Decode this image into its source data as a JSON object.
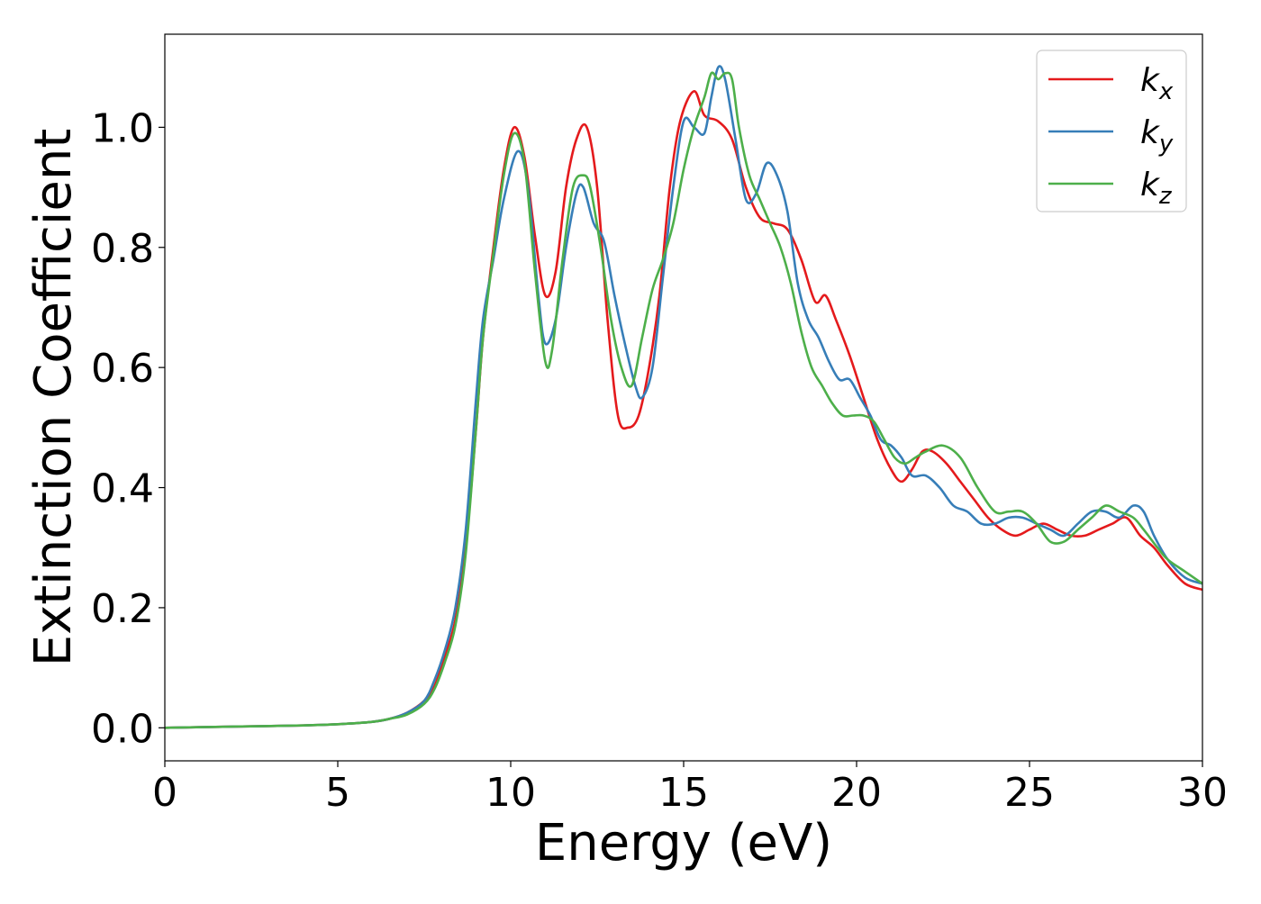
{
  "chart_data": {
    "type": "line",
    "xlabel": "Energy (eV)",
    "ylabel": "Extinction Coefficient",
    "xlim": [
      0,
      30
    ],
    "ylim": [
      -0.055,
      1.155
    ],
    "xticks": [
      "0",
      "5",
      "10",
      "15",
      "20",
      "25",
      "30"
    ],
    "yticks": [
      "0.0",
      "0.2",
      "0.4",
      "0.6",
      "0.8",
      "1.0"
    ],
    "grid": false,
    "legend_position": "top-right",
    "series": [
      {
        "name": "k_x",
        "legend_base": "k",
        "legend_sub": "x",
        "color": "#e41a1c",
        "x": [
          0,
          2,
          4,
          5,
          6,
          6.5,
          7,
          7.5,
          7.8,
          8.1,
          8.4,
          8.7,
          9.0,
          9.2,
          9.5,
          9.8,
          10.1,
          10.4,
          10.7,
          11.0,
          11.3,
          11.6,
          11.9,
          12.2,
          12.5,
          12.8,
          13.1,
          13.4,
          13.7,
          14.0,
          14.3,
          14.6,
          14.9,
          15.3,
          15.6,
          16.0,
          16.4,
          16.8,
          17.2,
          17.6,
          18.0,
          18.4,
          18.8,
          19.1,
          19.4,
          19.8,
          20.2,
          20.6,
          21.0,
          21.3,
          21.6,
          21.9,
          22.2,
          22.6,
          23.0,
          23.4,
          23.8,
          24.2,
          24.6,
          25.0,
          25.4,
          25.8,
          26.2,
          26.6,
          27.0,
          27.4,
          27.8,
          28.2,
          28.6,
          29.0,
          29.5,
          30.0
        ],
        "y": [
          0.0,
          0.002,
          0.004,
          0.006,
          0.01,
          0.015,
          0.025,
          0.045,
          0.07,
          0.12,
          0.18,
          0.3,
          0.5,
          0.65,
          0.8,
          0.93,
          1.0,
          0.95,
          0.82,
          0.72,
          0.76,
          0.9,
          0.98,
          1.0,
          0.9,
          0.68,
          0.52,
          0.5,
          0.52,
          0.6,
          0.72,
          0.9,
          1.01,
          1.06,
          1.02,
          1.01,
          0.98,
          0.9,
          0.85,
          0.84,
          0.83,
          0.78,
          0.71,
          0.72,
          0.68,
          0.62,
          0.55,
          0.48,
          0.43,
          0.41,
          0.43,
          0.46,
          0.46,
          0.44,
          0.41,
          0.38,
          0.35,
          0.33,
          0.32,
          0.33,
          0.34,
          0.33,
          0.32,
          0.32,
          0.33,
          0.34,
          0.35,
          0.32,
          0.3,
          0.27,
          0.24,
          0.23
        ]
      },
      {
        "name": "k_y",
        "legend_base": "k",
        "legend_sub": "y",
        "color": "#377eb8",
        "x": [
          0,
          2,
          4,
          5,
          6,
          6.5,
          7,
          7.5,
          7.8,
          8.1,
          8.4,
          8.7,
          9.0,
          9.2,
          9.5,
          9.8,
          10.2,
          10.5,
          10.8,
          11.0,
          11.3,
          11.6,
          11.9,
          12.1,
          12.4,
          12.7,
          13.0,
          13.3,
          13.6,
          13.8,
          14.1,
          14.4,
          14.7,
          15.0,
          15.3,
          15.6,
          15.8,
          16.0,
          16.2,
          16.5,
          16.8,
          17.1,
          17.4,
          17.7,
          18.0,
          18.3,
          18.6,
          18.9,
          19.2,
          19.5,
          19.8,
          20.1,
          20.4,
          20.7,
          21.0,
          21.3,
          21.6,
          22.0,
          22.4,
          22.8,
          23.2,
          23.6,
          24.0,
          24.4,
          24.8,
          25.2,
          25.6,
          26.0,
          26.4,
          26.8,
          27.2,
          27.6,
          28.0,
          28.3,
          28.6,
          29.0,
          29.5,
          30.0
        ],
        "y": [
          0.0,
          0.002,
          0.004,
          0.006,
          0.01,
          0.015,
          0.025,
          0.045,
          0.08,
          0.13,
          0.2,
          0.33,
          0.55,
          0.68,
          0.78,
          0.88,
          0.96,
          0.9,
          0.72,
          0.64,
          0.68,
          0.8,
          0.89,
          0.9,
          0.84,
          0.81,
          0.72,
          0.64,
          0.57,
          0.55,
          0.6,
          0.75,
          0.9,
          1.01,
          1.0,
          0.99,
          1.05,
          1.1,
          1.08,
          0.98,
          0.88,
          0.89,
          0.94,
          0.92,
          0.86,
          0.74,
          0.68,
          0.65,
          0.61,
          0.58,
          0.58,
          0.55,
          0.52,
          0.48,
          0.47,
          0.45,
          0.42,
          0.42,
          0.4,
          0.37,
          0.36,
          0.34,
          0.34,
          0.35,
          0.35,
          0.34,
          0.33,
          0.32,
          0.34,
          0.36,
          0.36,
          0.35,
          0.37,
          0.36,
          0.32,
          0.28,
          0.25,
          0.24
        ]
      },
      {
        "name": "k_z",
        "legend_base": "k",
        "legend_sub": "z",
        "color": "#4daf4a",
        "x": [
          0,
          2,
          4,
          5,
          6,
          6.5,
          7,
          7.5,
          7.8,
          8.1,
          8.4,
          8.7,
          9.0,
          9.2,
          9.5,
          9.8,
          10.1,
          10.4,
          10.7,
          11.0,
          11.2,
          11.5,
          11.8,
          12.1,
          12.3,
          12.6,
          12.9,
          13.2,
          13.5,
          13.8,
          14.1,
          14.4,
          14.7,
          15.0,
          15.3,
          15.6,
          15.8,
          16.0,
          16.2,
          16.4,
          16.6,
          16.9,
          17.2,
          17.5,
          17.8,
          18.1,
          18.4,
          18.7,
          19.0,
          19.3,
          19.6,
          19.9,
          20.2,
          20.5,
          20.8,
          21.1,
          21.4,
          21.7,
          22.0,
          22.5,
          23.0,
          23.5,
          24.0,
          24.4,
          24.8,
          25.2,
          25.6,
          26.0,
          26.4,
          26.8,
          27.2,
          27.6,
          28.0,
          28.3,
          28.7,
          29.0,
          29.5,
          30.0
        ],
        "y": [
          0.0,
          0.002,
          0.004,
          0.006,
          0.01,
          0.015,
          0.022,
          0.04,
          0.065,
          0.11,
          0.17,
          0.29,
          0.5,
          0.65,
          0.79,
          0.92,
          0.99,
          0.94,
          0.76,
          0.61,
          0.63,
          0.78,
          0.9,
          0.92,
          0.9,
          0.8,
          0.68,
          0.6,
          0.57,
          0.65,
          0.73,
          0.78,
          0.84,
          0.93,
          1.0,
          1.05,
          1.09,
          1.08,
          1.09,
          1.08,
          1.0,
          0.92,
          0.88,
          0.84,
          0.8,
          0.74,
          0.66,
          0.6,
          0.57,
          0.54,
          0.52,
          0.52,
          0.52,
          0.51,
          0.48,
          0.45,
          0.44,
          0.45,
          0.46,
          0.47,
          0.45,
          0.4,
          0.36,
          0.36,
          0.36,
          0.34,
          0.31,
          0.31,
          0.33,
          0.35,
          0.37,
          0.36,
          0.35,
          0.33,
          0.3,
          0.28,
          0.26,
          0.24
        ]
      }
    ]
  }
}
